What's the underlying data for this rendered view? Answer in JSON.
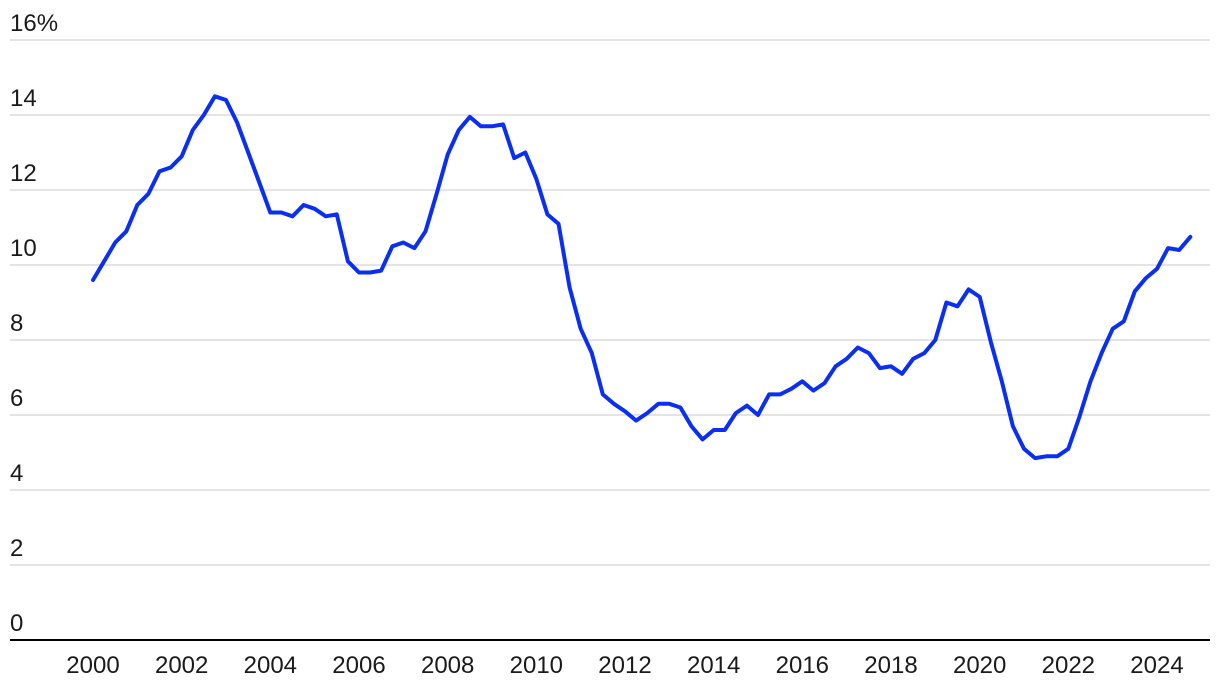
{
  "chart_data": {
    "type": "line",
    "title": "",
    "xlabel": "",
    "ylabel": "",
    "y_unit_suffix": "%",
    "xlim": [
      2000,
      2024
    ],
    "ylim": [
      0,
      16
    ],
    "x_ticks": [
      2000,
      2002,
      2004,
      2006,
      2008,
      2010,
      2012,
      2014,
      2016,
      2018,
      2020,
      2022,
      2024
    ],
    "x_tick_labels": [
      "2000",
      "2002",
      "2004",
      "2006",
      "2008",
      "2010",
      "2012",
      "2014",
      "2016",
      "2018",
      "2020",
      "2022",
      "2024"
    ],
    "y_ticks": [
      0,
      2,
      4,
      6,
      8,
      10,
      12,
      14,
      16
    ],
    "y_tick_labels": [
      "0",
      "2",
      "4",
      "6",
      "8",
      "10",
      "12",
      "14",
      "16%"
    ],
    "grid": "horizontal",
    "legend": "none",
    "line_color": "#0a2ff0",
    "grid_color": "#dcdcdc",
    "axis_color": "#000000",
    "series": [
      {
        "x": [
          2000.0,
          2000.25,
          2000.5,
          2000.75,
          2001.0,
          2001.25,
          2001.5,
          2001.75,
          2002.0,
          2002.25,
          2002.5,
          2002.75,
          2003.0,
          2003.25,
          2003.5,
          2003.75,
          2004.0,
          2004.25,
          2004.5,
          2004.75,
          2005.0,
          2005.25,
          2005.5,
          2005.75,
          2006.0,
          2006.25,
          2006.5,
          2006.75,
          2007.0,
          2007.25,
          2007.5,
          2007.75,
          2008.0,
          2008.25,
          2008.5,
          2008.75,
          2009.0,
          2009.25,
          2009.5,
          2009.75,
          2010.0,
          2010.25,
          2010.5,
          2010.75,
          2011.0,
          2011.25,
          2011.5,
          2011.75,
          2012.0,
          2012.25,
          2012.5,
          2012.75,
          2013.0,
          2013.25,
          2013.5,
          2013.75,
          2014.0,
          2014.25,
          2014.5,
          2014.75,
          2015.0,
          2015.25,
          2015.5,
          2015.75,
          2016.0,
          2016.25,
          2016.5,
          2016.75,
          2017.0,
          2017.25,
          2017.5,
          2017.75,
          2018.0,
          2018.25,
          2018.5,
          2018.75,
          2019.0,
          2019.25,
          2019.5,
          2019.75,
          2020.0,
          2020.25,
          2020.5,
          2020.75,
          2021.0,
          2021.25,
          2021.5,
          2021.75,
          2022.0,
          2022.25,
          2022.5,
          2022.75,
          2023.0,
          2023.25,
          2023.5,
          2023.75,
          2024.0,
          2024.25,
          2024.5,
          2024.75
        ],
        "y": [
          9.6,
          10.1,
          10.6,
          10.9,
          11.6,
          11.9,
          12.5,
          12.6,
          12.9,
          13.6,
          14.0,
          14.5,
          14.4,
          13.8,
          13.0,
          12.2,
          11.4,
          11.4,
          11.3,
          11.6,
          11.5,
          11.3,
          11.35,
          10.1,
          9.8,
          9.8,
          9.85,
          10.5,
          10.6,
          10.45,
          10.9,
          11.9,
          12.95,
          13.6,
          13.95,
          13.7,
          13.7,
          13.75,
          12.85,
          13.0,
          12.3,
          11.35,
          11.1,
          9.4,
          8.3,
          7.65,
          6.55,
          6.3,
          6.1,
          5.85,
          6.05,
          6.3,
          6.3,
          6.2,
          5.7,
          5.35,
          5.6,
          5.6,
          6.05,
          6.25,
          6.0,
          6.55,
          6.55,
          6.7,
          6.9,
          6.65,
          6.85,
          7.3,
          7.5,
          7.8,
          7.65,
          7.25,
          7.3,
          7.1,
          7.5,
          7.65,
          8.0,
          9.0,
          8.9,
          9.35,
          9.15,
          7.95,
          6.9,
          5.7,
          5.1,
          4.85,
          4.9,
          4.9,
          5.1,
          5.95,
          6.9,
          7.65,
          8.3,
          8.5,
          9.3,
          9.65,
          9.9,
          10.45,
          10.4,
          10.75
        ]
      }
    ]
  }
}
